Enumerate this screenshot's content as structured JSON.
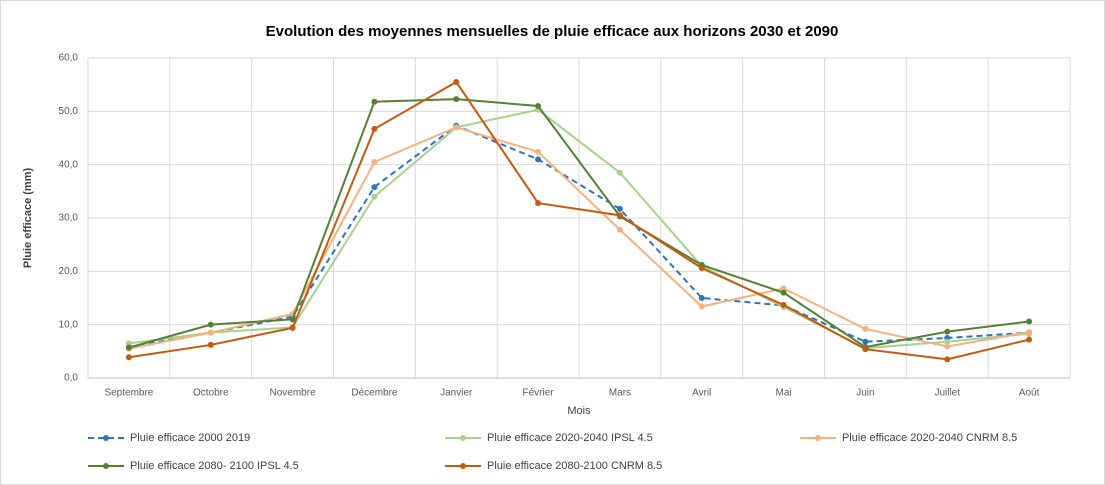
{
  "chart_data": {
    "type": "line",
    "title": "Evolution des moyennes mensuelles de pluie efficace aux horizons 2030 et 2090",
    "x_label": "Mois",
    "y_label": "Pluie efficace (mm)",
    "categories": [
      "Septembre",
      "Octobre",
      "Novembre",
      "Décembre",
      "Janvier",
      "Février",
      "Mars",
      "Avril",
      "Mai",
      "Juin",
      "Juillet",
      "Août"
    ],
    "ylim": [
      0,
      60
    ],
    "yticks": [
      {
        "value": 0,
        "label": "0,0"
      },
      {
        "value": 10,
        "label": "10,0"
      },
      {
        "value": 20,
        "label": "20,0"
      },
      {
        "value": 30,
        "label": "30,0"
      },
      {
        "value": 40,
        "label": "40,0"
      },
      {
        "value": 50,
        "label": "50,0"
      },
      {
        "value": 60,
        "label": "60,0"
      }
    ],
    "grid": true,
    "legend": "bottom",
    "series": [
      {
        "name": "Pluie efficace 2000 2019",
        "color": "#2e75b6",
        "dashed": true,
        "values": [
          5.8,
          8.5,
          11.5,
          35.8,
          47.3,
          41,
          31.7,
          15,
          13.6,
          6.8,
          7.5,
          8.5
        ]
      },
      {
        "name": "Pluie efficace 2020-2040 IPSL 4.5",
        "color": "#a9d18e",
        "values": [
          6.5,
          8.5,
          9.5,
          34,
          47,
          50.3,
          38.5,
          21,
          13.3,
          5.6,
          6.8,
          8.3
        ]
      },
      {
        "name": "Pluie efficace 2020-2040 CNRM 8.5",
        "color": "#f4b183",
        "values": [
          5.5,
          8.5,
          12,
          40.5,
          47,
          42.4,
          27.8,
          13.4,
          16.8,
          9.2,
          5.9,
          8.6
        ]
      },
      {
        "name": "Pluie efficace 2080- 2100 IPSL 4.5",
        "color": "#548235",
        "values": [
          5.7,
          10,
          11,
          51.8,
          52.3,
          51,
          30.3,
          21.2,
          16,
          5.8,
          8.7,
          10.6
        ]
      },
      {
        "name": "Pluie efficace 2080-2100 CNRM 8.5",
        "color": "#c55a11",
        "values": [
          3.9,
          6.2,
          9.4,
          46.7,
          55.5,
          32.8,
          30.5,
          20.6,
          13.7,
          5.4,
          3.5,
          7.2
        ]
      }
    ]
  }
}
